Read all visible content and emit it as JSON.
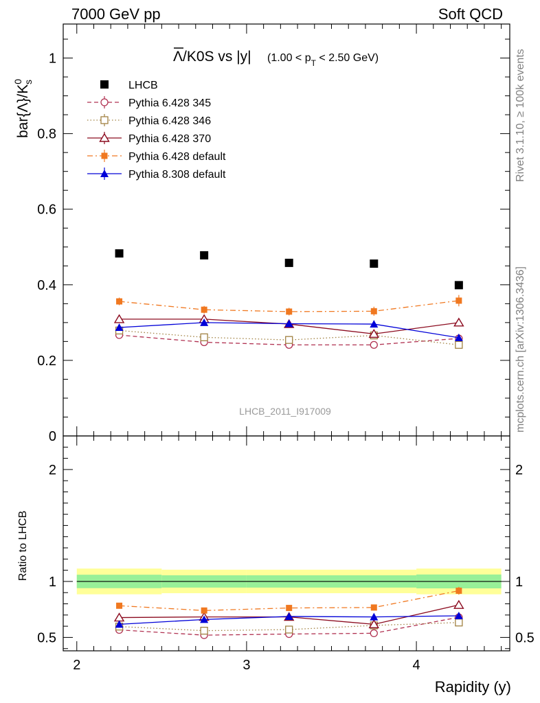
{
  "header": {
    "left": "7000 GeV pp",
    "right": "Soft QCD"
  },
  "side_text": {
    "top": "Rivet 3.1.10, ≥ 100k events",
    "bottom": "mcplots.cern.ch [arXiv:1306.3436]"
  },
  "watermark": "LHCB_2011_I917009",
  "title": {
    "main": "Λ/K0S vs |y|",
    "overline_char": "Λ",
    "rest": "/K0S vs |y|",
    "sub": "(1.00 < p",
    "sub_T": "T",
    "sub_end": " < 2.50 GeV)"
  },
  "colors": {
    "lhcb": "#000000",
    "p345": "#b03050",
    "p346": "#a08040",
    "p370": "#8b0a1e",
    "p6def": "#f07820",
    "p8def": "#0000d8",
    "band_green": "#98f098",
    "band_yellow": "#ffff99"
  },
  "chart_data": [
    {
      "type": "scatter",
      "panel": "main",
      "ylabel": "bar{Λ}/K",
      "ylabel_sup": "0",
      "ylabel_sub": "s",
      "xlim": [
        1.92,
        4.55
      ],
      "ylim": [
        0,
        1.09
      ],
      "yticks": [
        0,
        0.2,
        0.4,
        0.6,
        0.8,
        1
      ],
      "ytick_labels": [
        "0",
        "0.2",
        "0.4",
        "0.6",
        "0.8",
        "1"
      ],
      "x": [
        2.25,
        2.75,
        3.25,
        3.75,
        4.25
      ],
      "series": [
        {
          "name": "LHCB",
          "key": "lhcb",
          "marker": "square-filled",
          "line": "none",
          "values": [
            0.483,
            0.478,
            0.458,
            0.456,
            0.399
          ],
          "errors": [
            0.006,
            0.006,
            0.006,
            0.006,
            0.006
          ]
        },
        {
          "name": "Pythia 6.428 345",
          "key": "p345",
          "marker": "circle-open",
          "line": "dashed",
          "values": [
            0.267,
            0.248,
            0.241,
            0.241,
            0.258
          ],
          "errors": [
            0.005,
            0.005,
            0.005,
            0.006,
            0.007
          ]
        },
        {
          "name": "Pythia 6.428 346",
          "key": "p346",
          "marker": "square-open",
          "line": "dotted",
          "values": [
            0.279,
            0.261,
            0.254,
            0.266,
            0.241
          ],
          "errors": [
            0.005,
            0.005,
            0.005,
            0.006,
            0.007
          ]
        },
        {
          "name": "Pythia 6.428 370",
          "key": "p370",
          "marker": "triangle-open",
          "line": "solid",
          "values": [
            0.309,
            0.309,
            0.296,
            0.27,
            0.3
          ],
          "errors": [
            0.006,
            0.006,
            0.006,
            0.007,
            0.008
          ]
        },
        {
          "name": "Pythia 6.428 default",
          "key": "p6def",
          "marker": "square-filled-small",
          "line": "dashdot",
          "values": [
            0.356,
            0.334,
            0.329,
            0.33,
            0.358
          ],
          "errors": [
            0.01,
            0.01,
            0.01,
            0.012,
            0.015
          ]
        },
        {
          "name": "Pythia 8.308 default",
          "key": "p8def",
          "marker": "triangle-filled",
          "line": "solid",
          "values": [
            0.287,
            0.3,
            0.297,
            0.296,
            0.26
          ],
          "errors": [
            0.007,
            0.007,
            0.007,
            0.008,
            0.009
          ]
        }
      ]
    },
    {
      "type": "scatter",
      "panel": "ratio",
      "ylabel": "Ratio to LHCB",
      "xlabel": "Rapidity (y)",
      "xlim": [
        1.92,
        4.55
      ],
      "ylim": [
        0.38,
        2.3
      ],
      "xticks": [
        2,
        3,
        4
      ],
      "xtick_labels": [
        "2",
        "3",
        "4"
      ],
      "yticks": [
        0.5,
        1,
        2
      ],
      "ytick_labels": [
        "0.5",
        "1",
        "2"
      ],
      "band_edges": [
        2.0,
        2.5,
        3.0,
        3.5,
        4.0,
        4.5
      ],
      "band_green": [
        0.06,
        0.055,
        0.055,
        0.055,
        0.062
      ],
      "band_yellow": [
        0.115,
        0.105,
        0.105,
        0.105,
        0.115
      ],
      "x": [
        2.25,
        2.75,
        3.25,
        3.75,
        4.25
      ],
      "series": [
        {
          "name": "Pythia 6.428 345",
          "key": "p345",
          "marker": "circle-open",
          "line": "dashed",
          "values": [
            0.567,
            0.52,
            0.53,
            0.537,
            0.68
          ],
          "errors": [
            0.012,
            0.012,
            0.012,
            0.014,
            0.018
          ]
        },
        {
          "name": "Pythia 6.428 346",
          "key": "p346",
          "marker": "square-open",
          "line": "dotted",
          "values": [
            0.597,
            0.56,
            0.57,
            0.607,
            0.633
          ],
          "errors": [
            0.012,
            0.012,
            0.012,
            0.014,
            0.018
          ]
        },
        {
          "name": "Pythia 6.428 370",
          "key": "p370",
          "marker": "triangle-open",
          "line": "solid",
          "values": [
            0.677,
            0.683,
            0.683,
            0.617,
            0.79
          ],
          "errors": [
            0.013,
            0.013,
            0.013,
            0.015,
            0.02
          ]
        },
        {
          "name": "Pythia 6.428 default",
          "key": "p6def",
          "marker": "square-filled-small",
          "line": "dashdot",
          "values": [
            0.783,
            0.74,
            0.763,
            0.767,
            0.917
          ],
          "errors": [
            0.02,
            0.02,
            0.02,
            0.025,
            0.035
          ]
        },
        {
          "name": "Pythia 8.308 default",
          "key": "p8def",
          "marker": "triangle-filled",
          "line": "solid",
          "values": [
            0.617,
            0.66,
            0.687,
            0.683,
            0.693
          ],
          "errors": [
            0.014,
            0.014,
            0.014,
            0.016,
            0.02
          ]
        }
      ]
    }
  ]
}
